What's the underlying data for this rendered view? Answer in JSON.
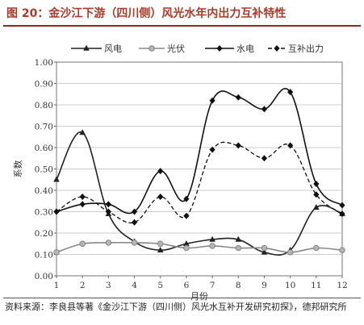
{
  "figure": {
    "title": "图 20：金沙江下游（四川侧）风光水年内出力互补特性",
    "source_text": "资料来源：李良县等著《金沙江下游（四川侧）风光水互补开发研究初探》，德邦研究所"
  },
  "chart_data": {
    "type": "line",
    "title": "",
    "xlabel": "月份",
    "ylabel": "系数",
    "x": [
      1,
      2,
      3,
      4,
      5,
      6,
      7,
      8,
      9,
      10,
      11,
      12
    ],
    "xlim": [
      1,
      12
    ],
    "ylim": [
      0.0,
      1.0
    ],
    "yticks": [
      "0.00",
      "0.10",
      "0.20",
      "0.30",
      "0.40",
      "0.50",
      "0.60",
      "0.70",
      "0.80",
      "0.90",
      "1.00"
    ],
    "xticks": [
      "1",
      "2",
      "3",
      "4",
      "5",
      "6",
      "7",
      "8",
      "9",
      "10",
      "11",
      "12"
    ],
    "grid": true,
    "legend_position": "top",
    "series": [
      {
        "name": "风电",
        "values": [
          0.45,
          0.67,
          0.29,
          0.16,
          0.12,
          0.15,
          0.17,
          0.17,
          0.11,
          0.12,
          0.32,
          0.29
        ],
        "color": "#222222",
        "style": "solid",
        "marker": "triangle"
      },
      {
        "name": "光伏",
        "values": [
          0.11,
          0.15,
          0.155,
          0.155,
          0.15,
          0.13,
          0.14,
          0.13,
          0.13,
          0.11,
          0.13,
          0.12
        ],
        "color": "#888888",
        "style": "solid",
        "marker": "circle"
      },
      {
        "name": "水电",
        "values": [
          0.3,
          0.335,
          0.335,
          0.3,
          0.49,
          0.36,
          0.82,
          0.835,
          0.78,
          0.86,
          0.43,
          0.33
        ],
        "color": "#111111",
        "style": "solid",
        "marker": "diamond"
      },
      {
        "name": "互补出力",
        "values": [
          0.3,
          0.37,
          0.3,
          0.25,
          0.37,
          0.28,
          0.59,
          0.61,
          0.55,
          0.61,
          0.38,
          0.29
        ],
        "color": "#111111",
        "style": "dashed",
        "marker": "diamond"
      }
    ]
  }
}
